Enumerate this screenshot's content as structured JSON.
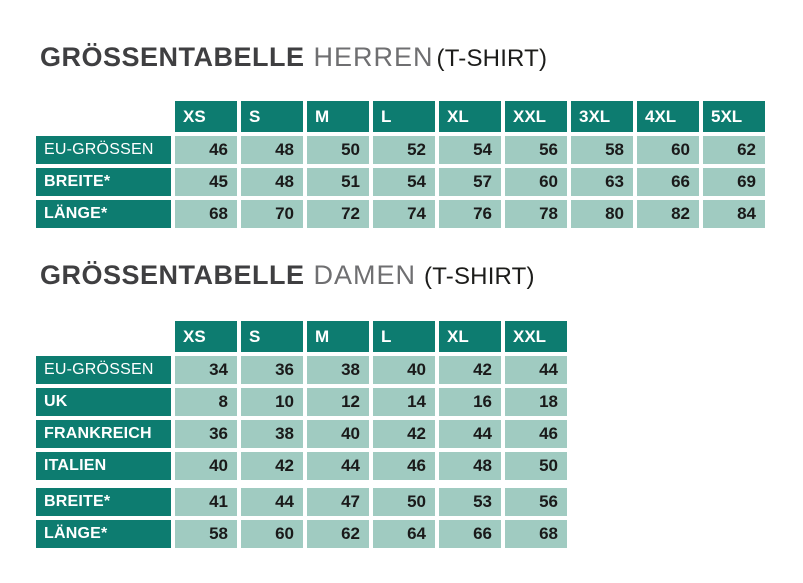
{
  "colors": {
    "page_bg": "#ffffff",
    "header_bg": "#0d7c70",
    "header_text": "#ffffff",
    "cell_bg": "#a0cbc1",
    "cell_text": "#1a1a1a",
    "title_strong": "#3f3f41",
    "title_light": "#6f6f71",
    "title_garment": "#1c1c1a"
  },
  "tables": [
    {
      "id": "herren",
      "title": {
        "strong": "GRÖSSENTABELLE",
        "light": "HERREN",
        "garment": "(T-SHIRT)"
      },
      "columns": [
        "XS",
        "S",
        "M",
        "L",
        "XL",
        "XXL",
        "3XL",
        "4XL",
        "5XL"
      ],
      "rows": [
        {
          "label": "EU-GRÖSSEN",
          "bold": false,
          "group_start": false,
          "values": [
            "46",
            "48",
            "50",
            "52",
            "54",
            "56",
            "58",
            "60",
            "62"
          ]
        },
        {
          "label": "BREITE*",
          "bold": true,
          "group_start": false,
          "values": [
            "45",
            "48",
            "51",
            "54",
            "57",
            "60",
            "63",
            "66",
            "69"
          ]
        },
        {
          "label": "LÄNGE*",
          "bold": true,
          "group_start": false,
          "values": [
            "68",
            "70",
            "72",
            "74",
            "76",
            "78",
            "80",
            "82",
            "84"
          ]
        }
      ]
    },
    {
      "id": "damen",
      "title": {
        "strong": "GRÖSSENTABELLE",
        "light": "DAMEN",
        "garment": "(T-SHIRT)"
      },
      "columns": [
        "XS",
        "S",
        "M",
        "L",
        "XL",
        "XXL"
      ],
      "rows": [
        {
          "label": "EU-GRÖSSEN",
          "bold": false,
          "group_start": false,
          "values": [
            "34",
            "36",
            "38",
            "40",
            "42",
            "44"
          ]
        },
        {
          "label": "UK",
          "bold": true,
          "group_start": false,
          "values": [
            "8",
            "10",
            "12",
            "14",
            "16",
            "18"
          ]
        },
        {
          "label": "FRANKREICH",
          "bold": true,
          "group_start": false,
          "values": [
            "36",
            "38",
            "40",
            "42",
            "44",
            "46"
          ]
        },
        {
          "label": "ITALIEN",
          "bold": true,
          "group_start": false,
          "values": [
            "40",
            "42",
            "44",
            "46",
            "48",
            "50"
          ]
        },
        {
          "label": "BREITE*",
          "bold": true,
          "group_start": true,
          "values": [
            "41",
            "44",
            "47",
            "50",
            "53",
            "56"
          ]
        },
        {
          "label": "LÄNGE*",
          "bold": true,
          "group_start": false,
          "values": [
            "58",
            "60",
            "62",
            "64",
            "66",
            "68"
          ]
        }
      ]
    }
  ]
}
